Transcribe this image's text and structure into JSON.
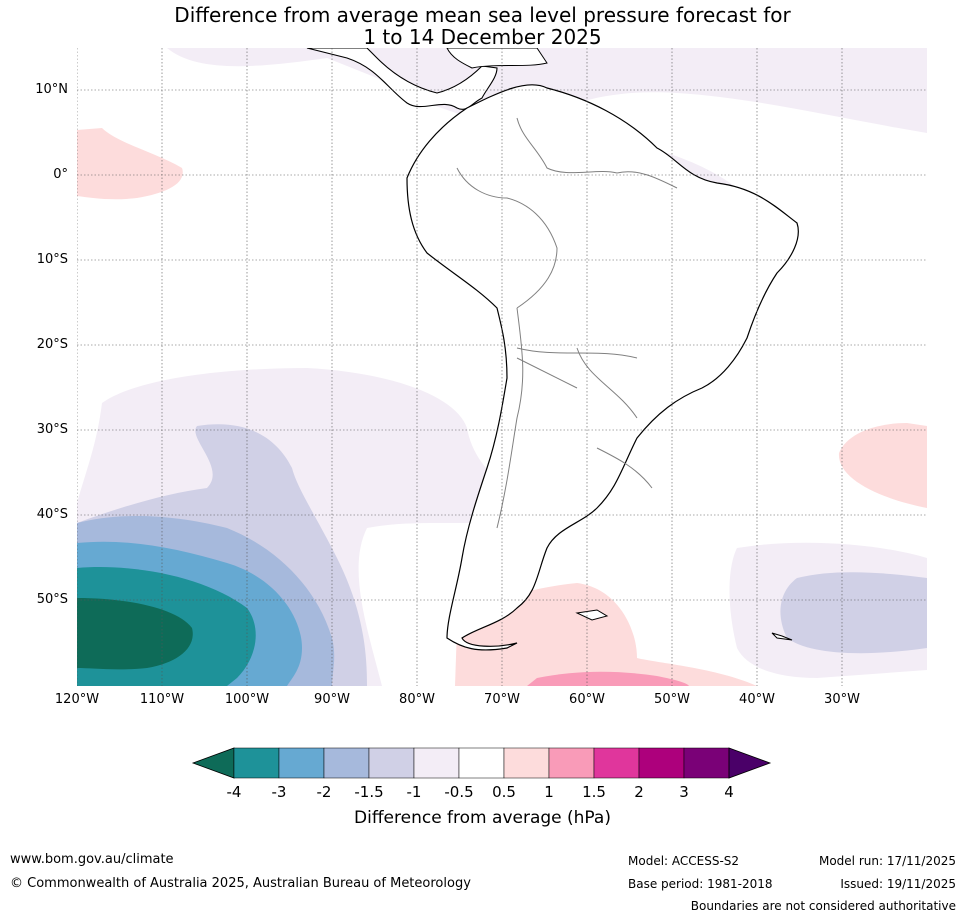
{
  "title": {
    "line1": "Difference from average mean sea level pressure forecast for",
    "line2": "1 to 14 December 2025"
  },
  "axes": {
    "lat_labels": [
      "10°N",
      "0°",
      "10°S",
      "20°S",
      "30°S",
      "40°S",
      "50°S"
    ],
    "lon_labels": [
      "120°W",
      "110°W",
      "100°W",
      "90°W",
      "80°W",
      "70°W",
      "60°W",
      "50°W",
      "40°W",
      "30°W"
    ]
  },
  "colorbar": {
    "title": "Difference from average (hPa)",
    "ticks": [
      "-4",
      "-3",
      "-2",
      "-1.5",
      "-1",
      "-0.5",
      "0.5",
      "1",
      "1.5",
      "2",
      "3",
      "4"
    ],
    "colors": [
      "#0e6b58",
      "#1e9299",
      "#66a9d2",
      "#a6b9dc",
      "#d0d0e6",
      "#f3edf6",
      "#ffffff",
      "#fddcdc",
      "#f99bb8",
      "#e0369c",
      "#ad007c",
      "#7a0177",
      "#4a0068"
    ]
  },
  "footer": {
    "website": "www.bom.gov.au/climate",
    "copyright": "© Commonwealth of Australia 2025, Australian Bureau of Meteorology",
    "model": "Model: ACCESS-S2",
    "base_period": "Base period: 1981-2018",
    "model_run": "Model run: 17/11/2025",
    "issued": "Issued: 19/11/2025",
    "disclaimer": "Boundaries are not considered authoritative"
  }
}
